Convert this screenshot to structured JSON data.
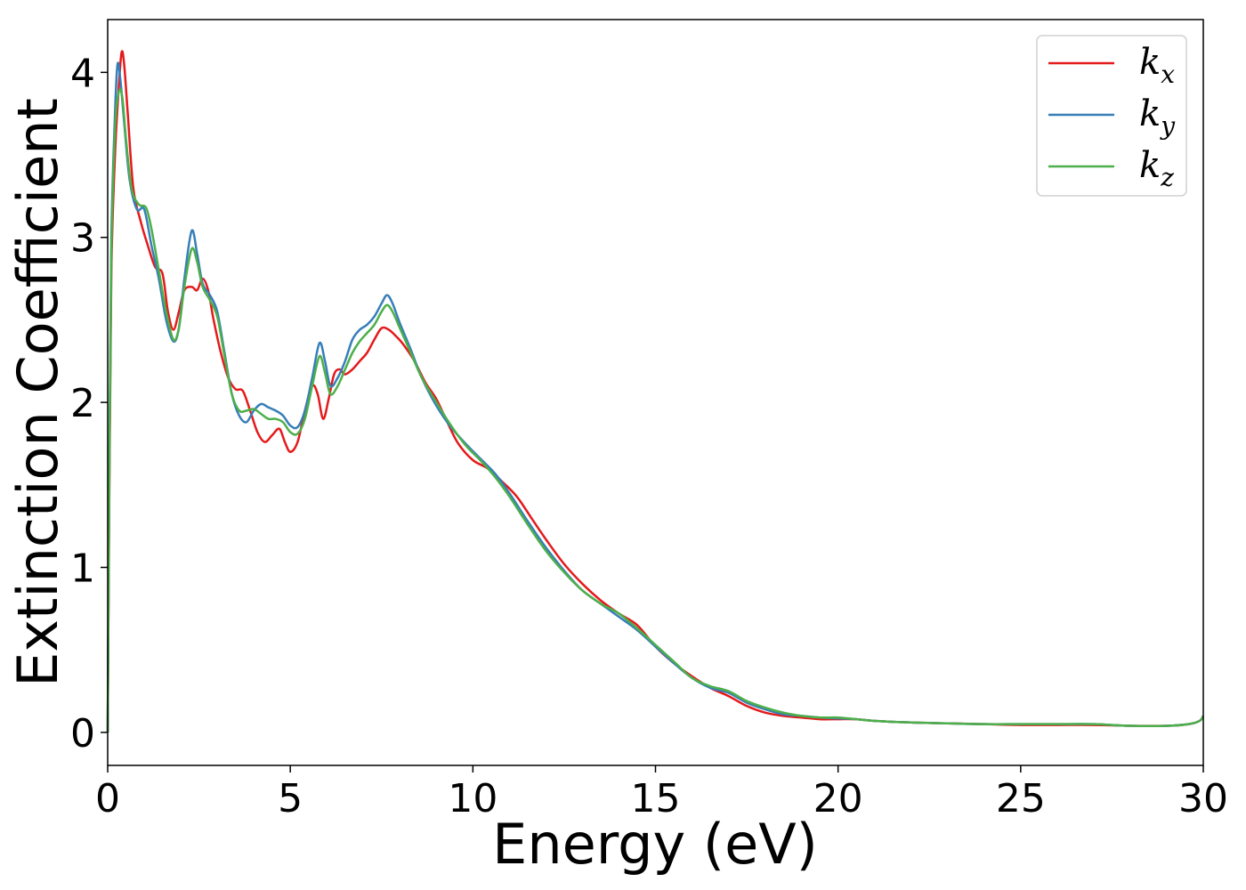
{
  "chart_data": {
    "type": "line",
    "title": "",
    "xlabel": "Energy (eV)",
    "ylabel": "Extinction Coefficient",
    "xlim": [
      0,
      30
    ],
    "ylim": [
      -0.2,
      4.32
    ],
    "xticks": [
      0,
      5,
      10,
      15,
      20,
      25,
      30
    ],
    "yticks": [
      0,
      1,
      2,
      3,
      4
    ],
    "grid": false,
    "legend_position": "top-right",
    "series": [
      {
        "name": "k_x",
        "label_main": "k",
        "label_sub": "x",
        "color": "#e41a1c",
        "x": [
          0,
          0.05,
          0.1,
          0.2,
          0.3,
          0.38,
          0.45,
          0.55,
          0.7,
          0.9,
          1.1,
          1.3,
          1.5,
          1.65,
          1.8,
          1.95,
          2.1,
          2.3,
          2.45,
          2.6,
          2.75,
          2.9,
          3.1,
          3.3,
          3.5,
          3.7,
          3.9,
          4.1,
          4.3,
          4.5,
          4.7,
          4.85,
          5.0,
          5.2,
          5.4,
          5.6,
          5.75,
          5.9,
          6.05,
          6.2,
          6.35,
          6.5,
          6.7,
          6.9,
          7.1,
          7.3,
          7.5,
          7.7,
          7.9,
          8.1,
          8.4,
          8.7,
          9.0,
          9.3,
          9.6,
          10.0,
          10.4,
          10.8,
          11.2,
          11.6,
          12.0,
          12.5,
          13.0,
          13.5,
          14.0,
          14.5,
          15.0,
          15.5,
          16.0,
          16.5,
          17.0,
          17.5,
          18.0,
          18.5,
          19.0,
          19.5,
          20.0,
          20.5,
          21.0,
          22.0,
          23.0,
          24.0,
          25.0,
          26.0,
          27.0,
          28.0,
          29.0,
          29.6,
          29.9,
          30.0
        ],
        "y": [
          0,
          1.6,
          2.8,
          3.5,
          3.9,
          4.12,
          4.05,
          3.75,
          3.3,
          3.1,
          2.95,
          2.82,
          2.78,
          2.55,
          2.44,
          2.55,
          2.68,
          2.7,
          2.68,
          2.75,
          2.68,
          2.5,
          2.3,
          2.15,
          2.08,
          2.07,
          1.95,
          1.82,
          1.76,
          1.8,
          1.84,
          1.76,
          1.7,
          1.76,
          1.95,
          2.1,
          2.05,
          1.9,
          2.02,
          2.17,
          2.2,
          2.17,
          2.2,
          2.25,
          2.3,
          2.38,
          2.45,
          2.44,
          2.4,
          2.35,
          2.25,
          2.12,
          2.02,
          1.88,
          1.75,
          1.65,
          1.6,
          1.52,
          1.43,
          1.3,
          1.17,
          1.02,
          0.9,
          0.8,
          0.72,
          0.65,
          0.52,
          0.42,
          0.34,
          0.27,
          0.22,
          0.16,
          0.12,
          0.1,
          0.09,
          0.08,
          0.08,
          0.08,
          0.07,
          0.06,
          0.055,
          0.05,
          0.045,
          0.045,
          0.045,
          0.04,
          0.04,
          0.05,
          0.07,
          0.1
        ]
      },
      {
        "name": "k_y",
        "label_main": "k",
        "label_sub": "y",
        "color": "#377eb8",
        "x": [
          0,
          0.05,
          0.1,
          0.2,
          0.27,
          0.35,
          0.45,
          0.6,
          0.8,
          1.0,
          1.2,
          1.4,
          1.6,
          1.8,
          1.95,
          2.1,
          2.3,
          2.45,
          2.6,
          2.8,
          3.0,
          3.2,
          3.4,
          3.6,
          3.8,
          4.0,
          4.2,
          4.4,
          4.6,
          4.8,
          5.0,
          5.2,
          5.4,
          5.6,
          5.8,
          5.95,
          6.1,
          6.3,
          6.5,
          6.7,
          6.9,
          7.1,
          7.3,
          7.5,
          7.65,
          7.8,
          8.0,
          8.3,
          8.6,
          9.0,
          9.4,
          9.8,
          10.2,
          10.6,
          11.0,
          11.5,
          12.0,
          12.5,
          13.0,
          13.5,
          14.0,
          14.5,
          15.0,
          15.5,
          16.0,
          16.5,
          17.0,
          17.5,
          18.0,
          18.5,
          19.0,
          19.5,
          20.0,
          20.5,
          21.0,
          22.0,
          23.0,
          24.0,
          25.0,
          26.0,
          27.0,
          28.0,
          29.0,
          29.6,
          29.9,
          30.0
        ],
        "y": [
          0,
          1.8,
          3.0,
          3.75,
          4.05,
          3.95,
          3.7,
          3.35,
          3.17,
          3.17,
          2.95,
          2.75,
          2.5,
          2.37,
          2.45,
          2.75,
          3.04,
          2.9,
          2.72,
          2.65,
          2.55,
          2.3,
          2.05,
          1.92,
          1.88,
          1.95,
          1.99,
          1.97,
          1.95,
          1.92,
          1.86,
          1.85,
          1.95,
          2.15,
          2.36,
          2.25,
          2.1,
          2.15,
          2.25,
          2.38,
          2.44,
          2.47,
          2.52,
          2.6,
          2.65,
          2.6,
          2.48,
          2.32,
          2.15,
          1.98,
          1.85,
          1.75,
          1.66,
          1.57,
          1.45,
          1.28,
          1.12,
          0.98,
          0.86,
          0.78,
          0.7,
          0.62,
          0.52,
          0.42,
          0.33,
          0.27,
          0.24,
          0.18,
          0.14,
          0.11,
          0.1,
          0.09,
          0.085,
          0.08,
          0.07,
          0.06,
          0.055,
          0.05,
          0.05,
          0.05,
          0.05,
          0.04,
          0.04,
          0.05,
          0.07,
          0.1
        ]
      },
      {
        "name": "k_z",
        "label_main": "k",
        "label_sub": "z",
        "color": "#4daf4a",
        "x": [
          0,
          0.05,
          0.1,
          0.2,
          0.3,
          0.4,
          0.5,
          0.65,
          0.85,
          1.05,
          1.2,
          1.4,
          1.6,
          1.8,
          1.95,
          2.1,
          2.3,
          2.45,
          2.6,
          2.8,
          3.0,
          3.2,
          3.4,
          3.6,
          3.8,
          4.0,
          4.2,
          4.4,
          4.6,
          4.8,
          5.0,
          5.2,
          5.4,
          5.6,
          5.8,
          5.95,
          6.1,
          6.3,
          6.5,
          6.7,
          6.9,
          7.1,
          7.3,
          7.5,
          7.65,
          7.8,
          8.0,
          8.3,
          8.6,
          9.0,
          9.4,
          9.8,
          10.2,
          10.6,
          11.0,
          11.5,
          12.0,
          12.5,
          13.0,
          13.5,
          14.0,
          14.5,
          15.0,
          15.5,
          16.0,
          16.5,
          17.0,
          17.5,
          18.0,
          18.5,
          19.0,
          19.5,
          20.0,
          20.5,
          21.0,
          22.0,
          23.0,
          24.0,
          25.0,
          26.0,
          27.0,
          28.0,
          29.0,
          29.6,
          29.9,
          30.0
        ],
        "y": [
          0,
          1.7,
          2.9,
          3.65,
          3.88,
          3.85,
          3.6,
          3.3,
          3.2,
          3.18,
          3.05,
          2.8,
          2.55,
          2.38,
          2.45,
          2.7,
          2.93,
          2.85,
          2.7,
          2.62,
          2.52,
          2.28,
          2.05,
          1.95,
          1.95,
          1.96,
          1.93,
          1.9,
          1.9,
          1.88,
          1.82,
          1.81,
          1.9,
          2.1,
          2.28,
          2.18,
          2.05,
          2.1,
          2.2,
          2.3,
          2.37,
          2.42,
          2.47,
          2.55,
          2.59,
          2.55,
          2.45,
          2.3,
          2.15,
          2.0,
          1.86,
          1.74,
          1.65,
          1.55,
          1.43,
          1.26,
          1.1,
          0.97,
          0.86,
          0.78,
          0.72,
          0.63,
          0.53,
          0.43,
          0.33,
          0.28,
          0.25,
          0.19,
          0.15,
          0.12,
          0.1,
          0.09,
          0.09,
          0.08,
          0.07,
          0.06,
          0.055,
          0.05,
          0.05,
          0.05,
          0.05,
          0.04,
          0.04,
          0.05,
          0.07,
          0.1
        ]
      }
    ]
  }
}
